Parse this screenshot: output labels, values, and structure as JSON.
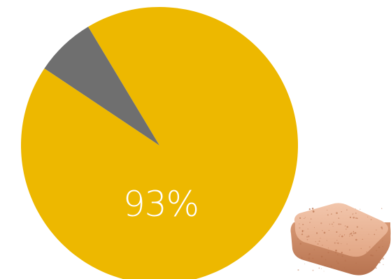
{
  "chart_data": {
    "type": "pie",
    "slices": [
      {
        "value": 93,
        "color": "#EDB800"
      },
      {
        "value": 7,
        "color": "#6F6F6F"
      }
    ],
    "start_angle_deg": -31,
    "data_label": "93%"
  },
  "illustration": {
    "icon": "effervescent-tablet-icon",
    "colors": {
      "face": "#E9B598",
      "side": "#C9855E",
      "speckle": "#B8704C"
    }
  }
}
